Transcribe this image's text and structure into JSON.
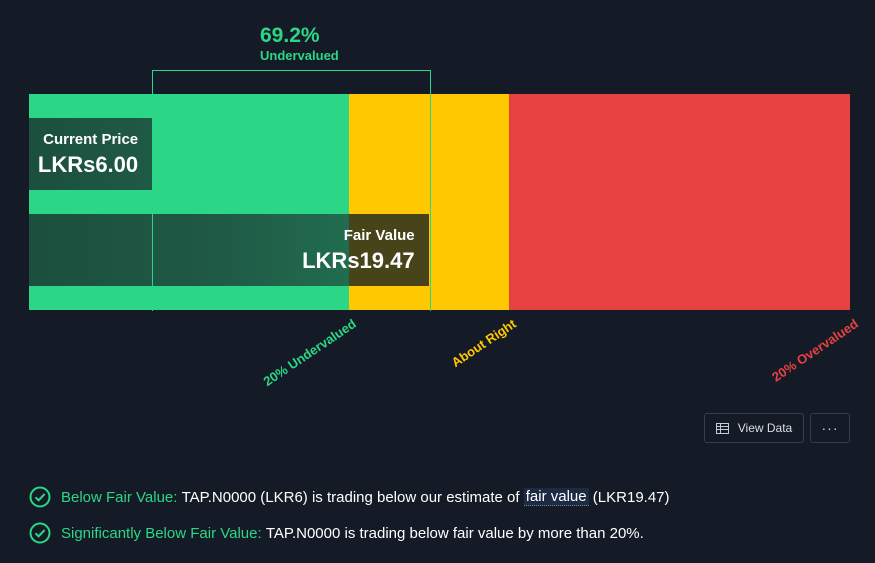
{
  "chart_data": {
    "type": "bar",
    "xlim": [
      0,
      40
    ],
    "categories": [
      "Current Price",
      "Fair Value"
    ],
    "bars": [
      {
        "label": "Current Price",
        "display": "LKRs6.00",
        "value": 6.0
      },
      {
        "label": "Fair Value",
        "display": "LKRs19.47",
        "value": 19.47
      }
    ],
    "zones": [
      {
        "name": "20% Undervalued",
        "from": 0,
        "to": 15.576,
        "color": "#2bd786"
      },
      {
        "name": "About Right",
        "from": 15.576,
        "to": 23.364,
        "color": "#ffc800"
      },
      {
        "name": "20% Overvalued",
        "from": 23.364,
        "to": 40,
        "color": "#e84142"
      }
    ],
    "difference": {
      "percent": "69.2%",
      "label": "Undervalued"
    }
  },
  "buttons": {
    "view_data": "View Data",
    "more": "···"
  },
  "checks": [
    {
      "title": "Below Fair Value:",
      "pre": "TAP.N0000 (LKR6) is trading below our estimate of",
      "link": "fair value",
      "post": "(LKR19.47)"
    },
    {
      "title": "Significantly Below Fair Value:",
      "pre": "TAP.N0000 is trading below fair value by more than 20%.",
      "link": "",
      "post": ""
    }
  ],
  "colors": {
    "green": "#2bd786",
    "yellow": "#ffc800",
    "red": "#e84142",
    "background": "#151b26"
  }
}
